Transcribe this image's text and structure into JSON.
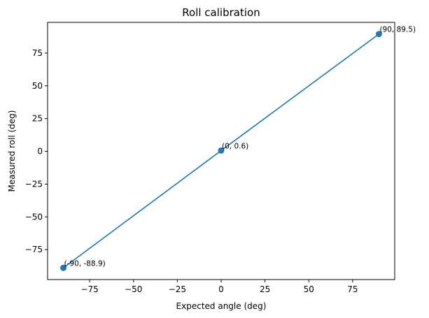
{
  "chart_data": {
    "type": "line",
    "title": "Roll calibration",
    "xlabel": "Expected angle (deg)",
    "ylabel": "Measured roll (deg)",
    "xlim": [
      -99,
      99
    ],
    "ylim": [
      -97.82,
      98.42
    ],
    "xticks": [
      -75,
      -50,
      -25,
      0,
      25,
      50,
      75
    ],
    "xtick_labels": [
      "−75",
      "−50",
      "−25",
      "0",
      "25",
      "50",
      "75"
    ],
    "yticks": [
      -75,
      -50,
      -25,
      0,
      25,
      50,
      75
    ],
    "ytick_labels": [
      "−75",
      "−50",
      "−25",
      "0",
      "25",
      "50",
      "75"
    ],
    "grid": false,
    "legend": null,
    "series": [
      {
        "color": "#1f77b4",
        "marker": "circle",
        "x": [
          -90,
          0,
          90
        ],
        "y": [
          -88.9,
          0.6,
          89.5
        ],
        "annotations": [
          "(-90, -88.9)",
          "(0, 0.6)",
          "(90, 89.5)"
        ]
      }
    ]
  }
}
